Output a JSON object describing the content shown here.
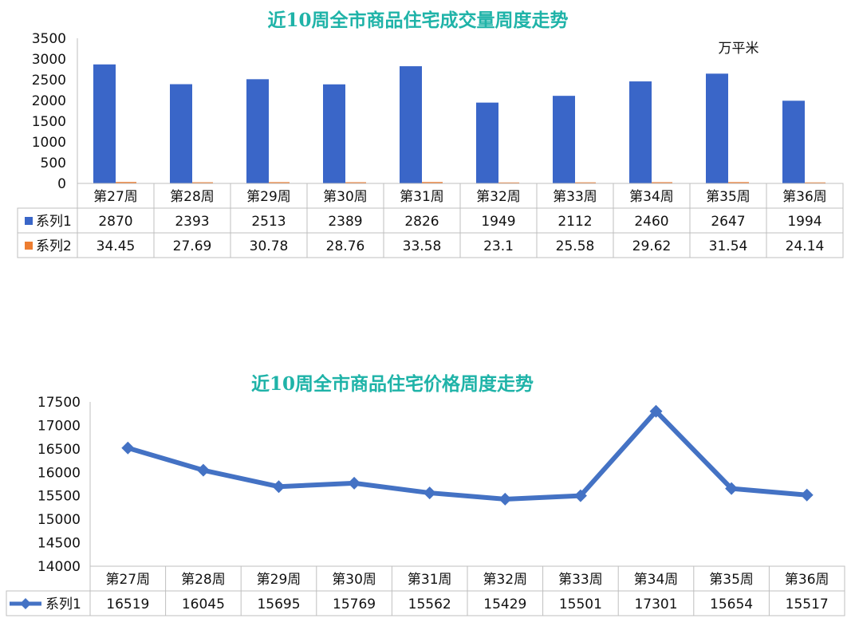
{
  "chart_data": [
    {
      "type": "bar",
      "title": "近10周全市商品住宅成交量周度走势",
      "unit_label": "万平米",
      "categories": [
        "第27周",
        "第28周",
        "第29周",
        "第30周",
        "第31周",
        "第32周",
        "第33周",
        "第34周",
        "第35周",
        "第36周"
      ],
      "series": [
        {
          "name": "系列1",
          "color": "#3a66c8",
          "values": [
            2870,
            2393,
            2513,
            2389,
            2826,
            1949,
            2112,
            2460,
            2647,
            1994
          ]
        },
        {
          "name": "系列2",
          "color": "#ed7d31",
          "values": [
            34.45,
            27.69,
            30.78,
            28.76,
            33.58,
            23.1,
            25.58,
            29.62,
            31.54,
            24.14
          ]
        }
      ],
      "ylim": [
        0,
        3500
      ],
      "yticks": [
        0,
        500,
        1000,
        1500,
        2000,
        2500,
        3000,
        3500
      ],
      "data_table": true
    },
    {
      "type": "line",
      "title": "近10周全市商品住宅价格周度走势",
      "categories": [
        "第27周",
        "第28周",
        "第29周",
        "第30周",
        "第31周",
        "第32周",
        "第33周",
        "第34周",
        "第35周",
        "第36周"
      ],
      "series": [
        {
          "name": "系列1",
          "color": "#4472c4",
          "marker": "diamond",
          "values": [
            16519,
            16045,
            15695,
            15769,
            15562,
            15429,
            15501,
            17301,
            15654,
            15517
          ]
        }
      ],
      "ylim": [
        14000,
        17500
      ],
      "yticks": [
        14000,
        14500,
        15000,
        15500,
        16000,
        16500,
        17000,
        17500
      ],
      "data_table": true
    }
  ]
}
